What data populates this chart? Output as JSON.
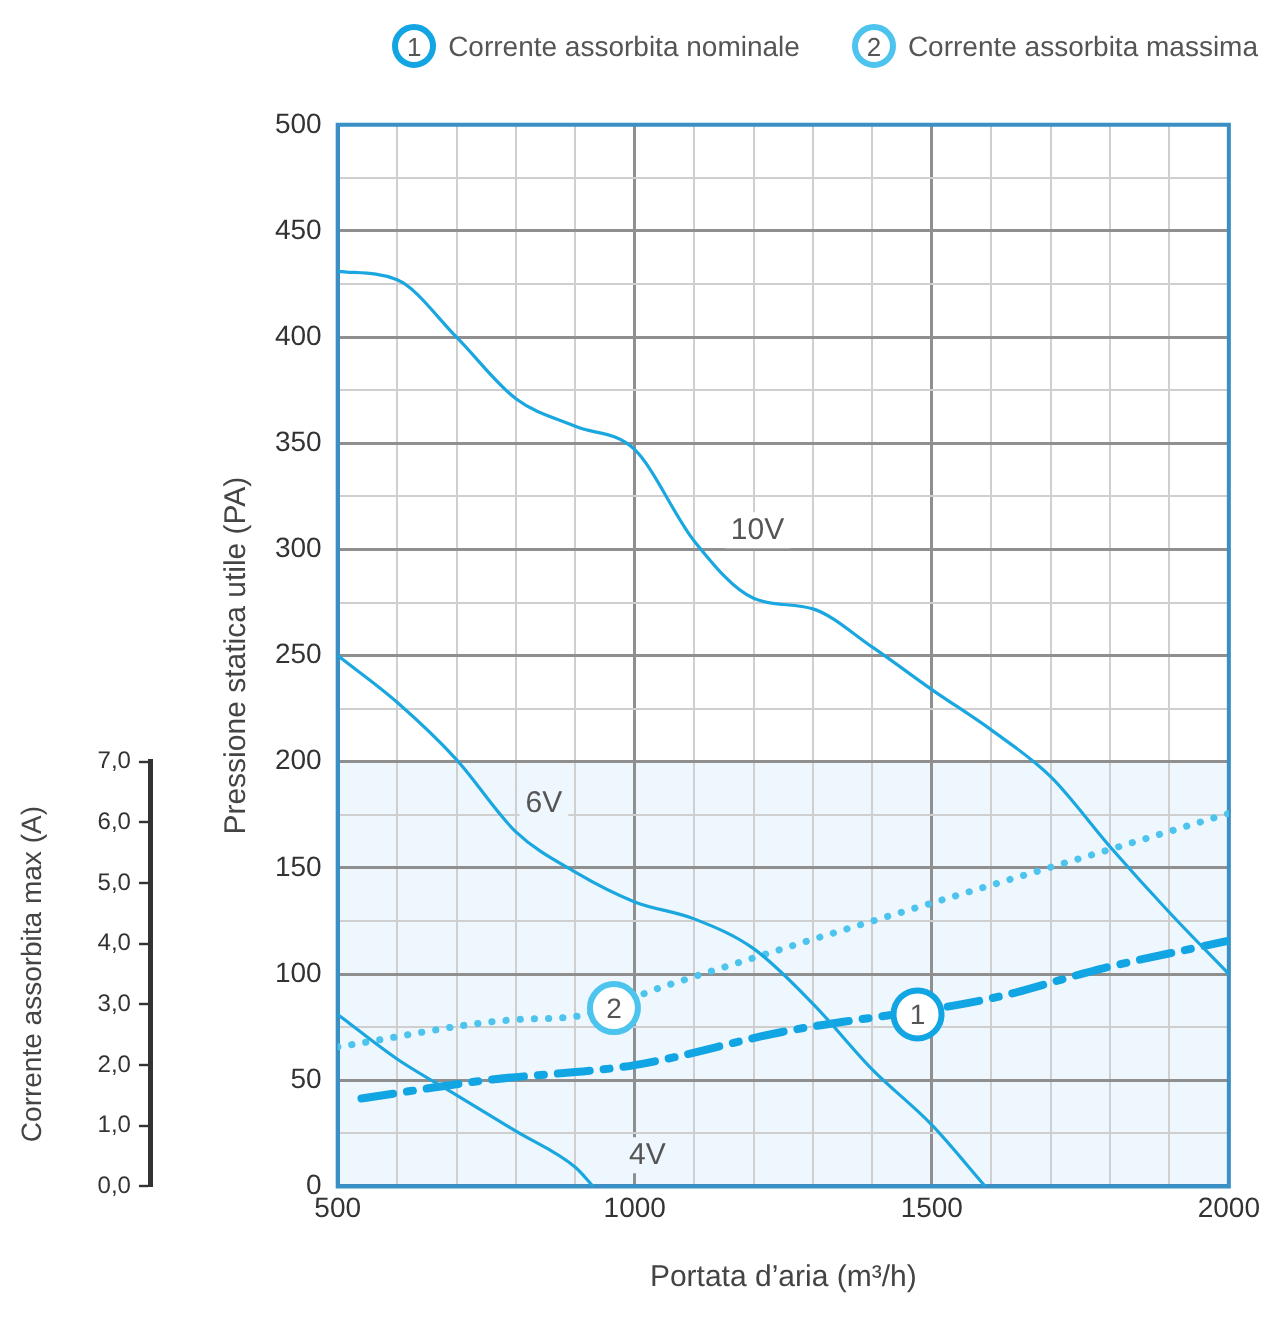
{
  "chart_data": {
    "type": "line",
    "xlabel": "Portata d’aria (m³/h)",
    "ylabel": "Pressione statica utile (PA)",
    "y2label": "Corrente assorbita max (A)",
    "xlim": [
      500,
      2000
    ],
    "xticks": [
      500,
      {
        "value": 600,
        "label": null
      },
      {
        "value": 700,
        "label": null
      },
      {
        "value": 800,
        "label": null
      },
      {
        "value": 900,
        "label": null
      },
      1000,
      {
        "value": 1100,
        "label": null
      },
      {
        "value": 1200,
        "label": null
      },
      {
        "value": 1300,
        "label": null
      },
      {
        "value": 1400,
        "label": null
      },
      1500,
      {
        "value": 1600,
        "label": null
      },
      {
        "value": 1700,
        "label": null
      },
      {
        "value": 1800,
        "label": null
      },
      {
        "value": 1900,
        "label": null
      },
      2000
    ],
    "ylim": [
      0,
      500
    ],
    "yticks": [
      0,
      {
        "value": 25,
        "label": null
      },
      50,
      {
        "value": 75,
        "label": null
      },
      100,
      {
        "value": 125,
        "label": null
      },
      150,
      {
        "value": 175,
        "label": null
      },
      200,
      {
        "value": 225,
        "label": null
      },
      250,
      {
        "value": 275,
        "label": null
      },
      300,
      {
        "value": 325,
        "label": null
      },
      350,
      {
        "value": 375,
        "label": null
      },
      400,
      {
        "value": 425,
        "label": null
      },
      450,
      {
        "value": 475,
        "label": null
      },
      500
    ],
    "y2lim": [
      0,
      7
    ],
    "y2ticks": [
      {
        "value": 0,
        "label": "0,0"
      },
      {
        "value": 1,
        "label": "1,0"
      },
      {
        "value": 2,
        "label": "2,0"
      },
      {
        "value": 3,
        "label": "3,0"
      },
      {
        "value": 4,
        "label": "4,0"
      },
      {
        "value": 5,
        "label": "5,0"
      },
      {
        "value": 6,
        "label": "6,0"
      },
      {
        "value": 7,
        "label": "7,0"
      }
    ],
    "grid": true,
    "legend": "top right",
    "bands": [
      {
        "axis": "y",
        "from": 0,
        "to": 200,
        "color": "#eef7fd"
      }
    ],
    "series": [
      {
        "name": "10V",
        "color": "#1aa7e0",
        "x": [
          500,
          600,
          700,
          800,
          900,
          1000,
          1100,
          1200,
          1300,
          1400,
          1500,
          1600,
          1700,
          1800,
          1900,
          2000
        ],
        "values": [
          431,
          427,
          400,
          371,
          358,
          347,
          304,
          277,
          272,
          254,
          234,
          215,
          193,
          160,
          129,
          100
        ]
      },
      {
        "name": "6V",
        "color": "#1aa7e0",
        "x": [
          500,
          600,
          700,
          800,
          900,
          1000,
          1100,
          1200,
          1300,
          1400,
          1500,
          1590
        ],
        "values": [
          250,
          228,
          201,
          167,
          148,
          134,
          126,
          112,
          86,
          55,
          29,
          0
        ]
      },
      {
        "name": "4V",
        "color": "#1aa7e0",
        "x": [
          500,
          600,
          700,
          800,
          900,
          930
        ],
        "values": [
          81,
          60,
          43,
          26,
          9,
          0
        ]
      },
      {
        "name": "Corrente assorbita nominale",
        "color": "#12a5e3",
        "axis": "y2",
        "line_style": "dashed",
        "x": [
          540,
          750,
          1000,
          1250,
          1600,
          1790,
          2000
        ],
        "values": [
          1.45,
          1.75,
          2.0,
          2.55,
          3.1,
          3.6,
          4.05
        ]
      },
      {
        "name": "Corrente assorbita massima",
        "color": "#4cc4ee",
        "axis": "y2",
        "line_style": "dotted",
        "x": [
          500,
          800,
          900,
          1050,
          2000
        ],
        "values": [
          2.3,
          2.75,
          2.8,
          3.3,
          6.15
        ]
      }
    ],
    "annotations": [
      {
        "text": "1",
        "x": 1476,
        "y": 81
      },
      {
        "text": "2",
        "x": 965,
        "y": 84
      }
    ]
  }
}
